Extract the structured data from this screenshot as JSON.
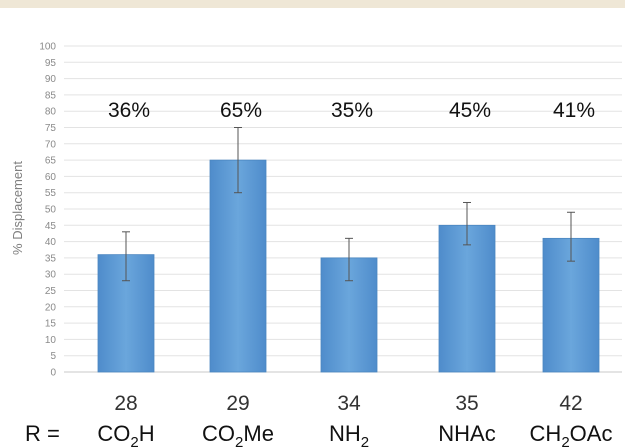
{
  "chart_data": {
    "type": "bar",
    "ylabel": "% Displacement",
    "xlabel": "",
    "ylim": [
      0,
      100
    ],
    "ytick_step": 5,
    "grid": true,
    "r_prefix": "R =",
    "categories": [
      "28",
      "29",
      "34",
      "35",
      "42"
    ],
    "substituents": [
      {
        "base": "CO",
        "sub": "2",
        "tail": "H"
      },
      {
        "base": "CO",
        "sub": "2",
        "tail": "Me"
      },
      {
        "base": "NH",
        "sub": "2",
        "tail": ""
      },
      {
        "base": "NHAc",
        "sub": "",
        "tail": ""
      },
      {
        "base": "CH",
        "sub": "2",
        "tail": "OAc"
      }
    ],
    "values": [
      36,
      65,
      35,
      45,
      41
    ],
    "error_high": [
      43,
      75,
      41,
      52,
      49
    ],
    "error_low": [
      28,
      55,
      28,
      39,
      34
    ],
    "data_labels": [
      "36%",
      "65%",
      "35%",
      "45%",
      "41%"
    ],
    "bar_color": "#5b9bd5",
    "bar_edge_color": "#4a86c0"
  }
}
